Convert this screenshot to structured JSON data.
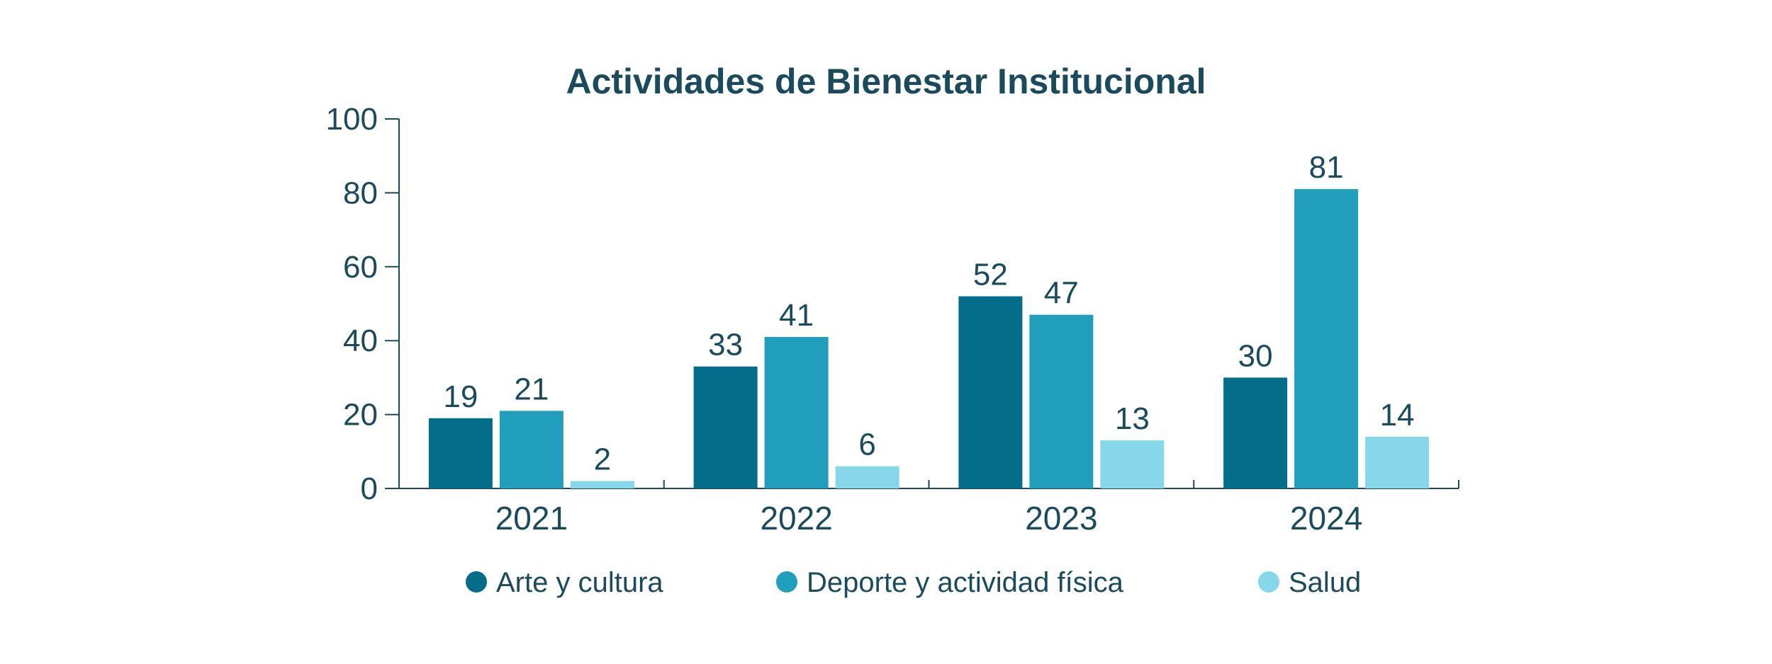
{
  "chart_data": {
    "type": "bar",
    "title": "Actividades de Bienestar Institucional",
    "categories": [
      "2021",
      "2022",
      "2023",
      "2024"
    ],
    "series": [
      {
        "name": "Arte y cultura",
        "color": "#036d8a",
        "values": [
          19,
          33,
          52,
          30
        ]
      },
      {
        "name": "Deporte y actividad física",
        "color": "#229ebd",
        "values": [
          21,
          41,
          47,
          81
        ]
      },
      {
        "name": "Salud",
        "color": "#85d7e9",
        "values": [
          2,
          6,
          13,
          14
        ]
      }
    ],
    "yticks": [
      0,
      20,
      40,
      60,
      80,
      100
    ],
    "ylim": [
      0,
      100
    ],
    "xlabel": "",
    "ylabel": "",
    "grid": false,
    "legend_position": "bottom",
    "text_color": "#1a4a5c"
  }
}
